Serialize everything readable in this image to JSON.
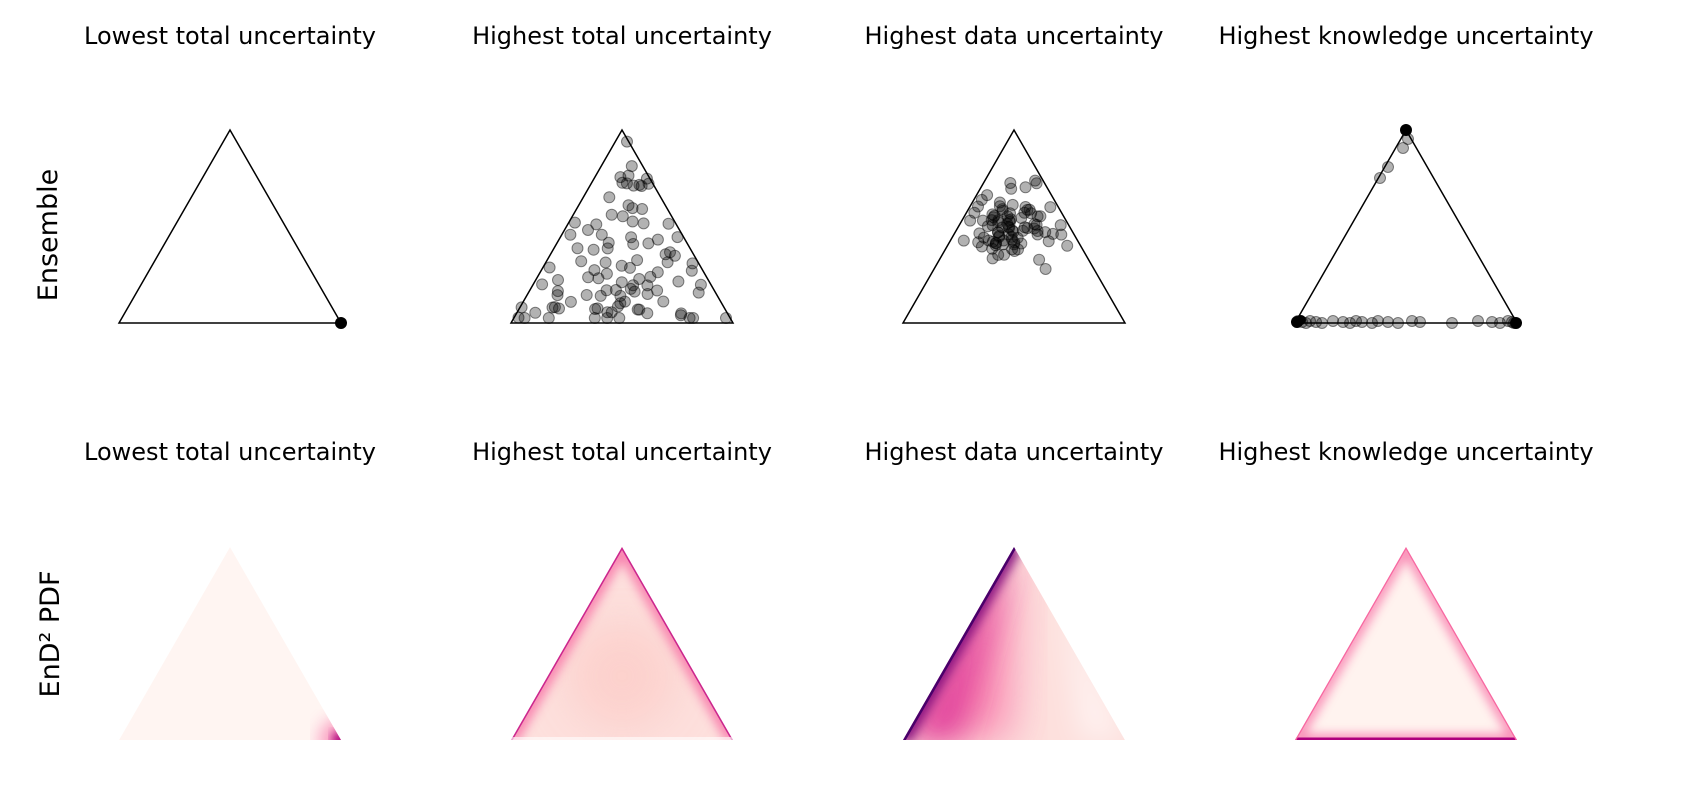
{
  "row_labels": {
    "ensemble": "Ensemble",
    "end2pdf": "EnD² PDF"
  },
  "panels": [
    {
      "title": "Lowest total uncertainty"
    },
    {
      "title": "Highest total uncertainty"
    },
    {
      "title": "Highest data uncertainty"
    },
    {
      "title": "Highest knowledge uncertainty"
    }
  ],
  "colormap": [
    "#fff7f3",
    "#fcc5c0",
    "#f768a1",
    "#ae017e",
    "#49006a"
  ]
}
